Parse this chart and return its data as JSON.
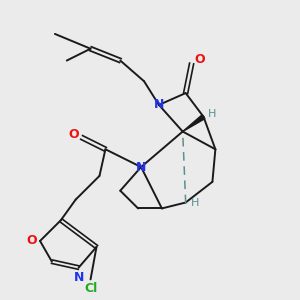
{
  "background_color": "#ebebeb",
  "fig_size": [
    3.0,
    3.0
  ],
  "dpi": 100,
  "bond_color": "#1a1a1a",
  "atom_colors": {
    "O": "#ee1111",
    "N": "#2233ee",
    "Cl": "#22aa22",
    "H_label": "#5a9090",
    "C": "#1a1a1a"
  }
}
